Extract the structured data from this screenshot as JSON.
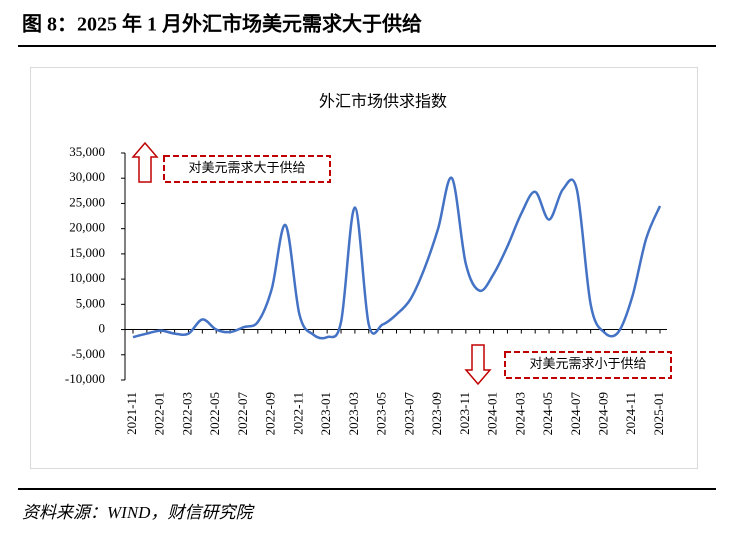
{
  "header": {
    "title": "图 8：2025 年 1 月外汇市场美元需求大于供给"
  },
  "chart_data": {
    "type": "line",
    "title": "外汇市场供求指数",
    "categories": [
      "2021-11",
      null,
      "2022-01",
      null,
      "2022-03",
      null,
      "2022-05",
      null,
      "2022-07",
      null,
      "2022-09",
      null,
      "2022-11",
      null,
      "2023-01",
      null,
      "2023-03",
      null,
      "2023-05",
      null,
      "2023-07",
      null,
      "2023-09",
      null,
      "2023-11",
      null,
      "2024-01",
      null,
      "2024-03",
      null,
      "2024-05",
      null,
      "2024-07",
      null,
      "2024-09",
      null,
      "2024-11",
      null,
      "2025-01"
    ],
    "series": [
      {
        "name": "外汇市场供求指数",
        "color": "#4472c4",
        "values": [
          -1500,
          -800,
          -200,
          -800,
          -800,
          2000,
          0,
          -500,
          500,
          1500,
          8000,
          20700,
          3000,
          -1000,
          -1500,
          1500,
          24200,
          1000,
          1000,
          3000,
          6000,
          12000,
          20000,
          30000,
          13000,
          7700,
          11000,
          16500,
          23000,
          27300,
          21800,
          27800,
          27800,
          5000,
          -600,
          -500,
          6500,
          18000,
          24500
        ]
      }
    ],
    "ylim": [
      -10000,
      35000
    ],
    "yticks": [
      {
        "value": -10000,
        "label": "-10,000"
      },
      {
        "value": -5000,
        "label": "-5,000"
      },
      0,
      {
        "value": 5000,
        "label": "5,000"
      },
      {
        "value": 10000,
        "label": "10,000"
      },
      {
        "value": 15000,
        "label": "15,000"
      },
      {
        "value": 20000,
        "label": "20,000"
      },
      {
        "value": 25000,
        "label": "25,000"
      },
      {
        "value": 30000,
        "label": "30,000"
      },
      {
        "value": 35000,
        "label": "35,000"
      }
    ],
    "negative_tick_color": "#ff0000",
    "annotations": [
      "对美元需求大于供给",
      "对美元需求小于供给"
    ],
    "annotation_color": "#c00000"
  },
  "footer": {
    "source": "资料来源：WIND，财信研究院"
  }
}
